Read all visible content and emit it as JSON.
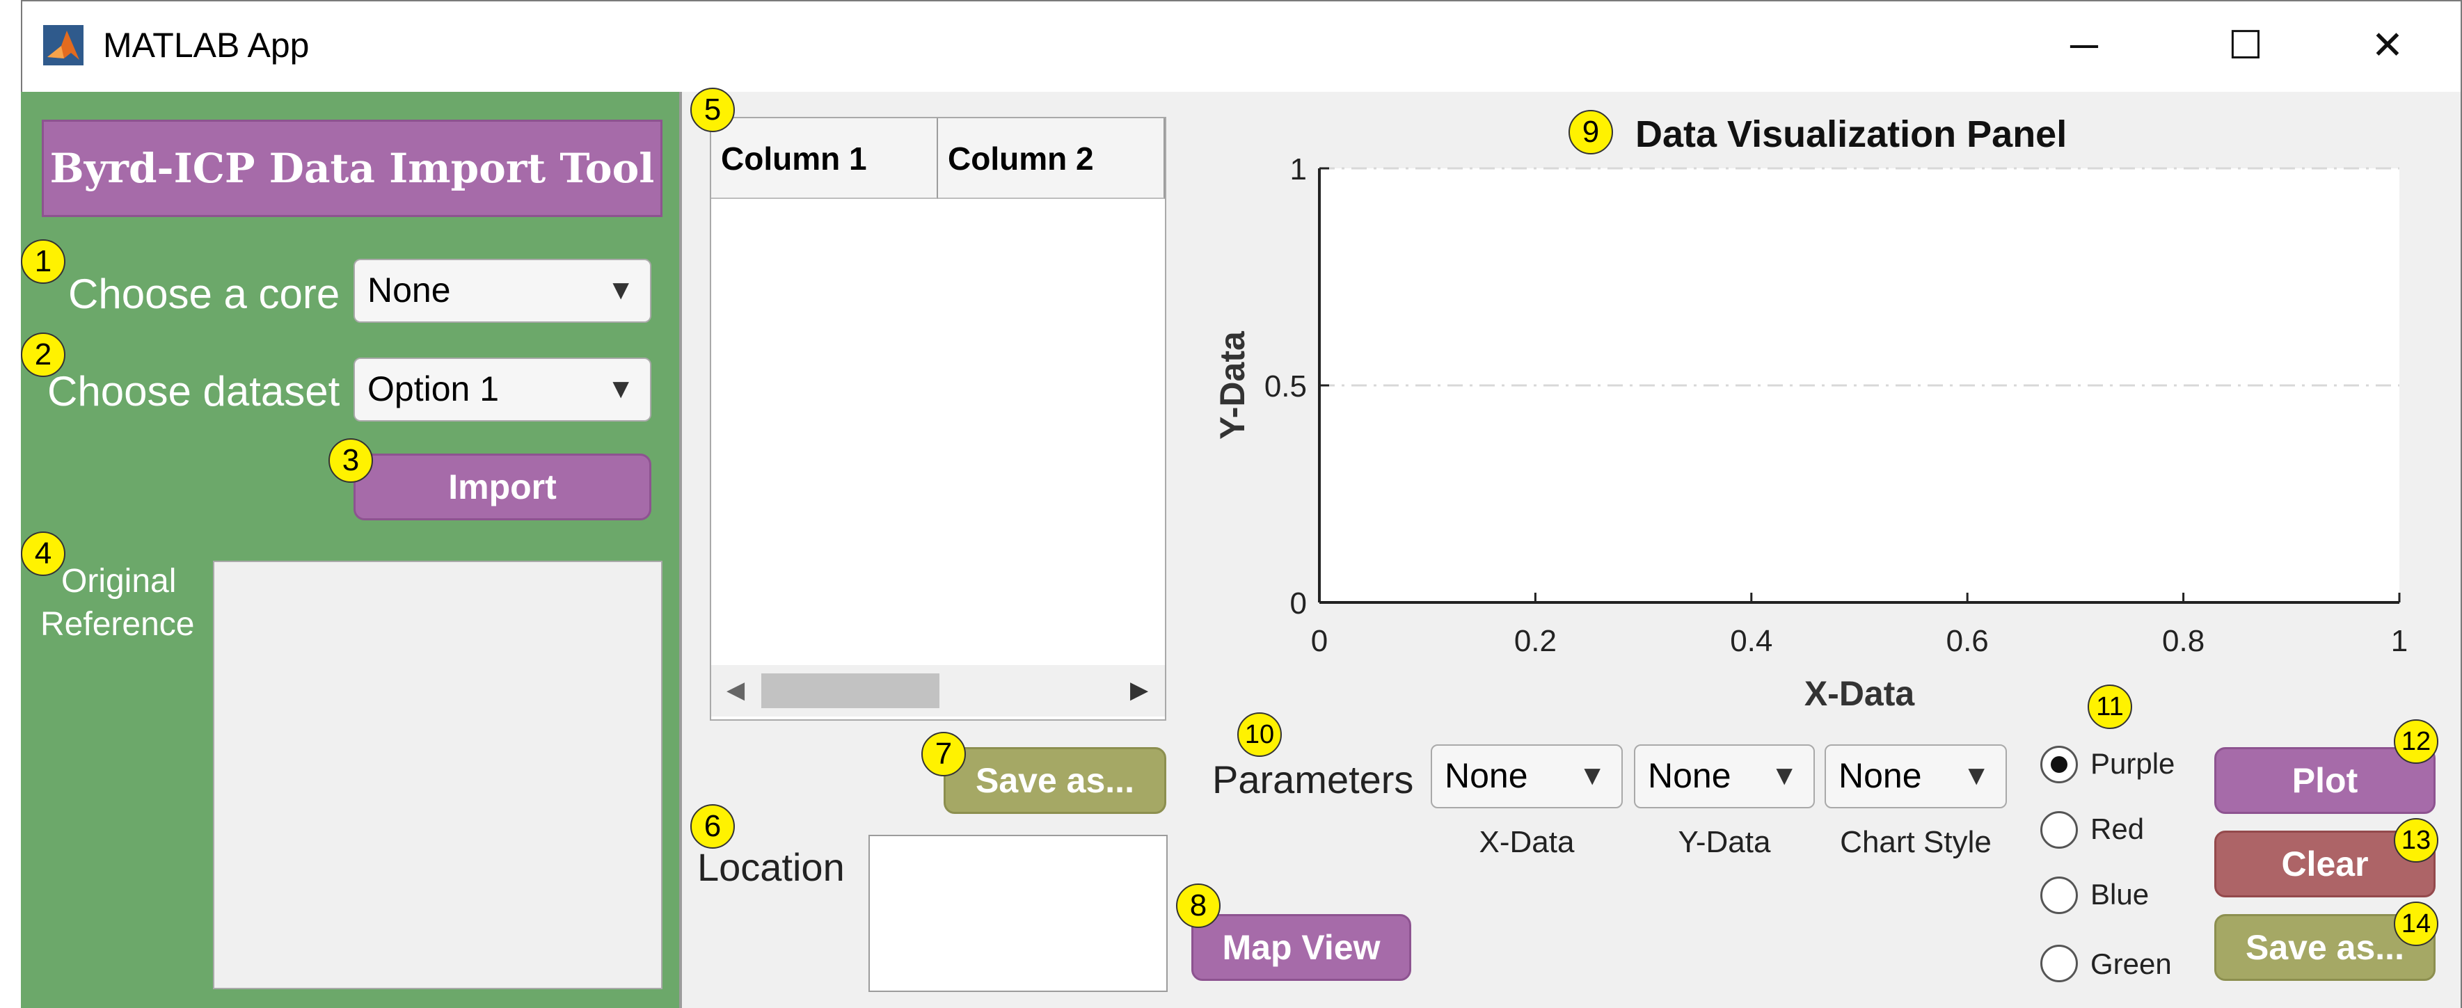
{
  "window": {
    "title": "MATLAB App",
    "controls": {
      "minimize": "─",
      "maximize": "☐",
      "close": "✕"
    }
  },
  "left": {
    "banner": "Byrd-ICP Data Import Tool",
    "core_label": "Choose a core",
    "core_value": "None",
    "dataset_label": "Choose dataset",
    "dataset_value": "Option 1",
    "import_label": "Import",
    "ref_label_1": "Original",
    "ref_label_2": "Reference"
  },
  "table": {
    "columns": [
      "Column 1",
      "Column 2"
    ],
    "save_label": "Save as..."
  },
  "location": {
    "label": "Location",
    "map_label": "Map View"
  },
  "chart_panel": {
    "title": "Data Visualization Panel"
  },
  "chart_data": {
    "type": "line",
    "title": "Data Visualization Panel",
    "xlabel": "X-Data",
    "ylabel": "Y-Data",
    "xlim": [
      0,
      1
    ],
    "ylim": [
      0,
      1
    ],
    "xticks": [
      "0",
      "0.2",
      "0.4",
      "0.6",
      "0.8",
      "1"
    ],
    "yticks": [
      "0",
      "0.5",
      "1"
    ],
    "grid": "horizontal dashed",
    "series": []
  },
  "parameters": {
    "label": "Parameters",
    "x_value": "None",
    "y_value": "None",
    "style_value": "None",
    "x_caption": "X-Data",
    "y_caption": "Y-Data",
    "style_caption": "Chart Style"
  },
  "colors": {
    "options": [
      "Purple",
      "Red",
      "Blue",
      "Green"
    ],
    "selected": "Purple"
  },
  "actions": {
    "plot": "Plot",
    "clear": "Clear",
    "save": "Save as..."
  },
  "badges": [
    "1",
    "2",
    "3",
    "4",
    "5",
    "6",
    "7",
    "8",
    "9",
    "10",
    "11",
    "12",
    "13",
    "14"
  ],
  "theme": {
    "panel_green": "#6ca86a",
    "purple": "#a66ba9",
    "olive": "#a5a865",
    "red": "#ad6467",
    "badge_yellow": "#fff200"
  }
}
